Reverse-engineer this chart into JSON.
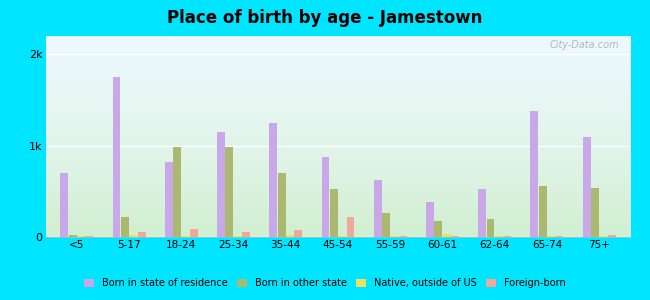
{
  "title": "Place of birth by age - Jamestown",
  "categories": [
    "<5",
    "5-17",
    "18-24",
    "25-34",
    "35-44",
    "45-54",
    "55-59",
    "60-61",
    "62-64",
    "65-74",
    "75+"
  ],
  "born_in_state": [
    700,
    1750,
    820,
    1150,
    1250,
    880,
    620,
    380,
    520,
    1380,
    1100
  ],
  "born_other_state": [
    20,
    220,
    980,
    980,
    700,
    520,
    260,
    170,
    200,
    560,
    540
  ],
  "native_outside_us": [
    10,
    20,
    15,
    15,
    25,
    15,
    8,
    35,
    15,
    10,
    15
  ],
  "foreign_born": [
    15,
    50,
    90,
    60,
    75,
    220,
    15,
    15,
    15,
    15,
    20
  ],
  "color_born_in_state": "#c8a8e8",
  "color_born_other_state": "#aab870",
  "color_native_outside_us": "#f0e060",
  "color_foreign_born": "#f0a898",
  "ylim": [
    0,
    2200
  ],
  "ytick_labels": [
    "0",
    "1k",
    "2k"
  ],
  "outer_bg": "#00e5ff",
  "watermark": "City-Data.com",
  "legend_labels": [
    "Born in state of residence",
    "Born in other state",
    "Native, outside of US",
    "Foreign-born"
  ],
  "bar_width": 0.15,
  "bar_gap": 0.01
}
